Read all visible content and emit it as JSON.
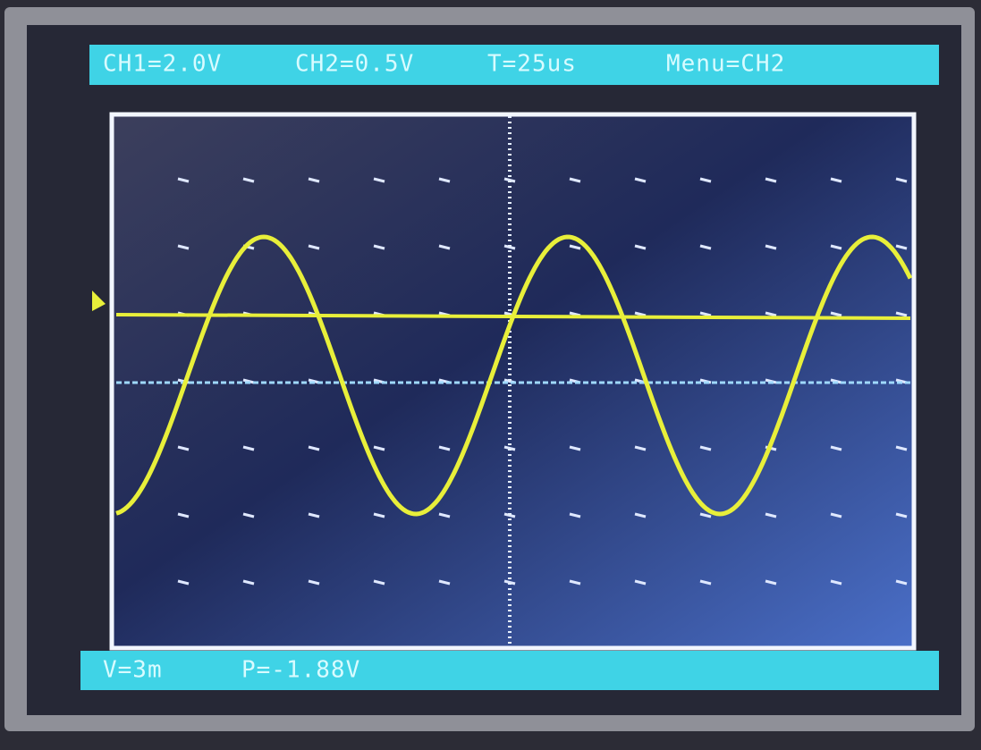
{
  "top_bar": {
    "ch1": "CH1=2.0V",
    "ch2": "CH2=0.5V",
    "timebase": "T=25us",
    "menu": "Menu=CH2"
  },
  "bottom_bar": {
    "trigger": "V=3m",
    "position": "P=-1.88V"
  }
}
